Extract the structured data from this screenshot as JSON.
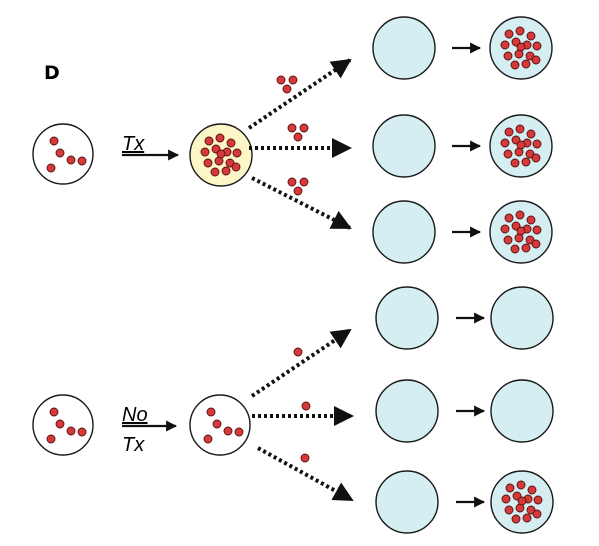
{
  "panel_letter": "D",
  "labels": {
    "tx": "Tx",
    "no_tx_line1": "No",
    "no_tx_line2": "Tx"
  },
  "colors": {
    "red_particle": "#d53a3a",
    "pale_yellow_cell": "#fdf6c6",
    "pale_blue_cell": "#d5eef2",
    "white_cell": "#ffffff",
    "stroke": "#1a1a1a"
  },
  "rows": [
    {
      "group": "treated",
      "dots_transferred": 3,
      "recipient_infected": true
    },
    {
      "group": "treated",
      "dots_transferred": 3,
      "recipient_infected": true
    },
    {
      "group": "treated",
      "dots_transferred": 3,
      "recipient_infected": true
    },
    {
      "group": "untreated",
      "dots_transferred": 1,
      "recipient_infected": false
    },
    {
      "group": "untreated",
      "dots_transferred": 1,
      "recipient_infected": false
    },
    {
      "group": "untreated",
      "dots_transferred": 1,
      "recipient_infected": true
    }
  ]
}
